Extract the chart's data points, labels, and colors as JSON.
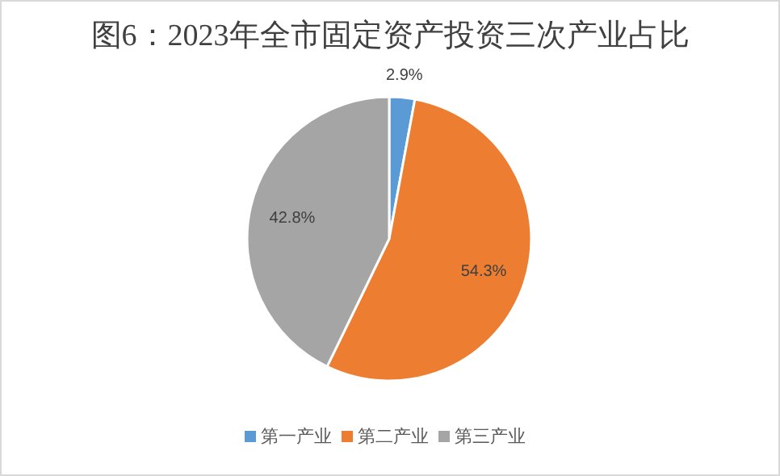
{
  "chart_data": {
    "type": "pie",
    "title": "图6：2023年全市固定资产投资三次产业占比",
    "categories": [
      "第一产业",
      "第二产业",
      "第三产业"
    ],
    "values": [
      2.9,
      54.3,
      42.8
    ],
    "colors": [
      "#5b9bd5",
      "#ed7d31",
      "#a5a5a5"
    ],
    "value_labels": [
      "2.9%",
      "54.3%",
      "42.8%"
    ],
    "legend": "bottom"
  }
}
